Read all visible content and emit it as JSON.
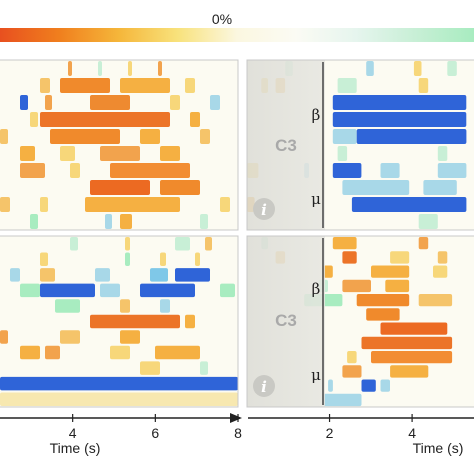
{
  "colorbar": {
    "tick_label": "0%",
    "colors": [
      "#e8501f",
      "#f07f1e",
      "#f5b63a",
      "#f8e27c",
      "#fbf7e0",
      "#fbfbf4",
      "#e6f5ee",
      "#c8efd6",
      "#a8ecc0"
    ]
  },
  "background_color": "#fcfbf2",
  "panels": [
    {
      "id": "top-left",
      "rows": [
        [
          [
            68,
            72,
            "#f2a34d"
          ],
          [
            98,
            102,
            "#c8efd6"
          ],
          [
            128,
            132,
            "#f7d77a"
          ],
          [
            158,
            162,
            "#f2a34d"
          ]
        ],
        [
          [
            40,
            50,
            "#f5c46a"
          ],
          [
            60,
            110,
            "#f08a2c"
          ],
          [
            120,
            170,
            "#f5b042"
          ],
          [
            185,
            195,
            "#f7d77a"
          ]
        ],
        [
          [
            20,
            28,
            "#2f64d8"
          ],
          [
            45,
            52,
            "#f2a34d"
          ],
          [
            90,
            130,
            "#ee8a30"
          ],
          [
            170,
            180,
            "#f7d77a"
          ],
          [
            210,
            220,
            "#a8d8e8"
          ]
        ],
        [
          [
            30,
            38,
            "#f7d77a"
          ],
          [
            40,
            170,
            "#ec7428"
          ],
          [
            190,
            200,
            "#f5b042"
          ]
        ],
        [
          [
            0,
            8,
            "#f5c46a"
          ],
          [
            50,
            120,
            "#f08a2c"
          ],
          [
            140,
            160,
            "#f5b042"
          ],
          [
            200,
            210,
            "#f5c46a"
          ]
        ],
        [
          [
            20,
            35,
            "#f5b042"
          ],
          [
            60,
            75,
            "#f7d77a"
          ],
          [
            100,
            140,
            "#f2a34d"
          ],
          [
            160,
            180,
            "#f5b042"
          ]
        ],
        [
          [
            20,
            45,
            "#f2a34d"
          ],
          [
            70,
            80,
            "#f7d77a"
          ],
          [
            110,
            190,
            "#f28d33"
          ]
        ],
        [
          [
            90,
            150,
            "#ec6a22"
          ],
          [
            160,
            200,
            "#f08a2c"
          ]
        ],
        [
          [
            0,
            10,
            "#f5c46a"
          ],
          [
            40,
            48,
            "#f7d77a"
          ],
          [
            85,
            180,
            "#f5b042"
          ],
          [
            220,
            230,
            "#f7d77a"
          ]
        ],
        [
          [
            30,
            38,
            "#a8ecc0"
          ],
          [
            105,
            112,
            "#a8d8e8"
          ],
          [
            120,
            132,
            "#f5b042"
          ],
          [
            200,
            208,
            "#c8efd6"
          ]
        ]
      ]
    },
    {
      "id": "bottom-left",
      "rows": [
        [
          [
            70,
            78,
            "#c8efd6"
          ],
          [
            125,
            130,
            "#f7d77a"
          ],
          [
            175,
            190,
            "#c8efd6"
          ],
          [
            205,
            212,
            "#f5c46a"
          ]
        ],
        [
          [
            40,
            48,
            "#f7d77a"
          ],
          [
            125,
            130,
            "#a8ecc0"
          ],
          [
            160,
            166,
            "#f7d77a"
          ],
          [
            195,
            200,
            "#f7d77a"
          ]
        ],
        [
          [
            10,
            20,
            "#a8d8e8"
          ],
          [
            40,
            55,
            "#f5c46a"
          ],
          [
            95,
            110,
            "#a8d8e8"
          ],
          [
            150,
            168,
            "#7fc8e8"
          ],
          [
            175,
            210,
            "#2f64d8"
          ]
        ],
        [
          [
            20,
            40,
            "#a8ecc0"
          ],
          [
            40,
            95,
            "#2f64d8"
          ],
          [
            100,
            120,
            "#a8d8e8"
          ],
          [
            140,
            195,
            "#2f64d8"
          ],
          [
            220,
            235,
            "#a8ecc0"
          ]
        ],
        [
          [
            55,
            80,
            "#a8ecc0"
          ],
          [
            120,
            130,
            "#f5c46a"
          ],
          [
            160,
            170,
            "#a8d8e8"
          ]
        ],
        [
          [
            90,
            180,
            "#ec7428"
          ],
          [
            185,
            195,
            "#f5b042"
          ]
        ],
        [
          [
            0,
            8,
            "#f2a34d"
          ],
          [
            60,
            80,
            "#f5c46a"
          ],
          [
            120,
            140,
            "#f5b042"
          ]
        ],
        [
          [
            20,
            40,
            "#f5b042"
          ],
          [
            45,
            60,
            "#f2a34d"
          ],
          [
            110,
            130,
            "#f7d77a"
          ],
          [
            155,
            200,
            "#f5b042"
          ]
        ],
        [
          [
            140,
            160,
            "#f7d77a"
          ],
          [
            200,
            208,
            "#c8efd6"
          ]
        ],
        [
          [
            0,
            238,
            "#2f64d8"
          ]
        ],
        [
          [
            0,
            238,
            "#f7e8b0"
          ]
        ]
      ]
    },
    {
      "id": "top-right",
      "roi_label": "C3",
      "band_upper": "β",
      "band_lower": "μ",
      "rows": [
        [
          [
            40,
            48,
            "#c8efd6"
          ],
          [
            125,
            133,
            "#a8d8e8"
          ],
          [
            175,
            183,
            "#f7d77a"
          ],
          [
            210,
            220,
            "#c8efd6"
          ]
        ],
        [
          [
            15,
            22,
            "#f7d77a"
          ],
          [
            30,
            40,
            "#f5c46a"
          ],
          [
            95,
            115,
            "#c8efd6"
          ],
          [
            180,
            190,
            "#f7d77a"
          ]
        ],
        [
          [
            90,
            230,
            "#2f64d8"
          ]
        ],
        [
          [
            90,
            230,
            "#2f64d8"
          ]
        ],
        [
          [
            90,
            115,
            "#a8d8e8"
          ],
          [
            115,
            230,
            "#2f64d8"
          ]
        ],
        [
          [
            95,
            105,
            "#c8efd6"
          ],
          [
            200,
            210,
            "#c8efd6"
          ]
        ],
        [
          [
            0,
            12,
            "#f7d77a"
          ],
          [
            60,
            65,
            "#a8d8e8"
          ],
          [
            90,
            120,
            "#2f64d8"
          ],
          [
            140,
            160,
            "#a8d8e8"
          ],
          [
            200,
            230,
            "#a8d8e8"
          ]
        ],
        [
          [
            100,
            170,
            "#a8d8e8"
          ],
          [
            185,
            220,
            "#a8d8e8"
          ]
        ],
        [
          [
            0,
            8,
            "#f5b042"
          ],
          [
            110,
            230,
            "#2f64d8"
          ]
        ],
        [
          [
            180,
            200,
            "#c8efd6"
          ]
        ]
      ]
    },
    {
      "id": "bottom-right",
      "roi_label": "C3",
      "band_upper": "β",
      "band_lower": "μ",
      "rows": [
        [
          [
            15,
            22,
            "#c8efd6"
          ],
          [
            90,
            115,
            "#f5b042"
          ],
          [
            180,
            190,
            "#f2a34d"
          ]
        ],
        [
          [
            30,
            40,
            "#f5c46a"
          ],
          [
            100,
            115,
            "#ec7428"
          ],
          [
            150,
            170,
            "#f7d77a"
          ],
          [
            200,
            210,
            "#f5c46a"
          ]
        ],
        [
          [
            80,
            90,
            "#f5b042"
          ],
          [
            130,
            170,
            "#f5b042"
          ],
          [
            195,
            210,
            "#f7d77a"
          ]
        ],
        [
          [
            75,
            85,
            "#c8efd6"
          ],
          [
            100,
            130,
            "#f2a34d"
          ],
          [
            145,
            170,
            "#f5b042"
          ]
        ],
        [
          [
            60,
            100,
            "#a8ecc0"
          ],
          [
            115,
            170,
            "#f08a2c"
          ],
          [
            180,
            215,
            "#f5c46a"
          ]
        ],
        [
          [
            125,
            160,
            "#f08a2c"
          ]
        ],
        [
          [
            140,
            210,
            "#ec6a22"
          ]
        ],
        [
          [
            120,
            215,
            "#ec7428"
          ]
        ],
        [
          [
            105,
            115,
            "#f7d77a"
          ],
          [
            130,
            215,
            "#f28d33"
          ]
        ],
        [
          [
            100,
            120,
            "#f2a34d"
          ],
          [
            150,
            190,
            "#f5b042"
          ]
        ],
        [
          [
            85,
            90,
            "#a8d8e8"
          ],
          [
            120,
            135,
            "#2f64d8"
          ],
          [
            140,
            150,
            "#a8d8e8"
          ]
        ],
        [
          [
            80,
            120,
            "#a8d8e8"
          ]
        ]
      ]
    }
  ],
  "x_axes": [
    {
      "ticks": [
        {
          "label": "4",
          "value": 4
        },
        {
          "label": "6",
          "value": 6
        },
        {
          "label": "8",
          "value": 8
        }
      ],
      "domain": [
        2,
        8
      ],
      "xlabel": "Time (s)"
    },
    {
      "ticks": [
        {
          "label": "2",
          "value": 2
        },
        {
          "label": "4",
          "value": 4
        }
      ],
      "domain": [
        0,
        5.5
      ],
      "xlabel": "Time (s)"
    }
  ],
  "chart_data": {
    "type": "heatmap",
    "title": "",
    "colorbar_tick": "0%",
    "xlabel": "Time (s)",
    "panels": [
      "top-left",
      "bottom-left",
      "top-right (C3, β / μ)",
      "bottom-right (C3, β / μ)"
    ],
    "x_ticks_left": [
      4,
      6,
      8
    ],
    "x_ticks_right": [
      2,
      4
    ]
  }
}
